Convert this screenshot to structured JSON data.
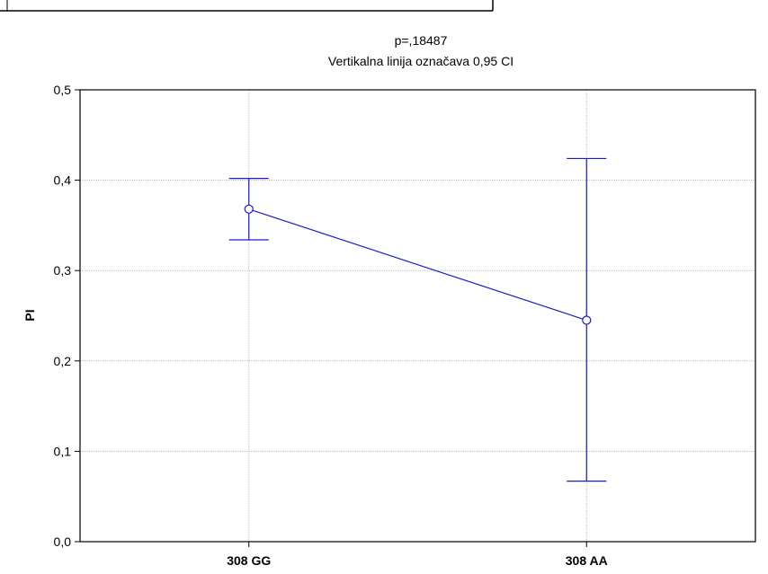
{
  "chart_data": {
    "type": "line",
    "title": "p=,18487",
    "subtitle": "Vertikalna linija označava 0,95 CI",
    "xlabel": "",
    "ylabel": "PI",
    "categories": [
      "308 GG",
      "308 AA"
    ],
    "series": [
      {
        "values": [
          0.368,
          0.245
        ],
        "ci_lower": [
          0.334,
          0.067
        ],
        "ci_upper": [
          0.402,
          0.424
        ]
      }
    ],
    "ylim": [
      0,
      0.5
    ],
    "yticks": [
      0.0,
      0.1,
      0.2,
      0.3,
      0.4,
      0.5
    ],
    "ytick_labels": [
      "0,0",
      "0,1",
      "0,2",
      "0,3",
      "0,4",
      "0,5"
    ],
    "grid": true,
    "colors": {
      "series": "#1a1acd",
      "grid": "#bfbfbf",
      "axis": "#000000"
    }
  }
}
